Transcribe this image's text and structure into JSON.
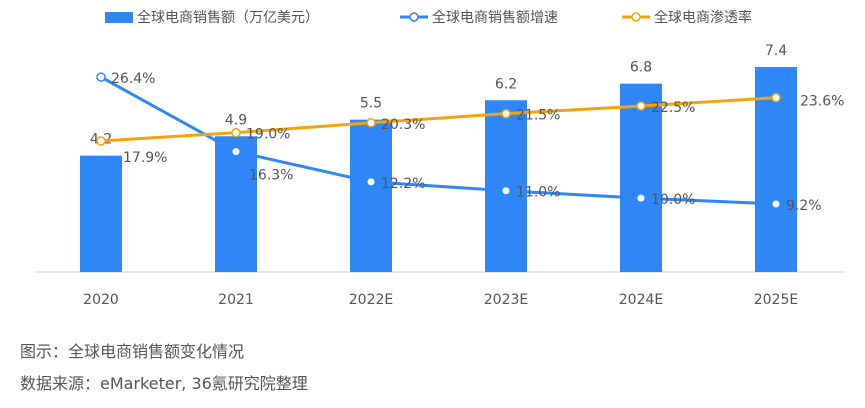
{
  "chart_data": {
    "type": "bar+line",
    "categories": [
      "2020",
      "2021",
      "2022E",
      "2023E",
      "2024E",
      "2025E"
    ],
    "series": [
      {
        "name": "全球电商销售额（万亿美元）",
        "type": "bar",
        "axis": "left",
        "color": "#2f86f6",
        "values": [
          4.2,
          4.9,
          5.5,
          6.2,
          6.8,
          7.4
        ],
        "labels": [
          "4.2",
          "4.9",
          "5.5",
          "6.2",
          "6.8",
          "7.4"
        ]
      },
      {
        "name": "全球电商销售额增速",
        "type": "line",
        "axis": "right",
        "color": "#2f86f6",
        "values": [
          26.4,
          16.3,
          12.2,
          11.0,
          10.0,
          9.2
        ],
        "labels": [
          "26.4%",
          "16.3%",
          "12.2%",
          "11.0%",
          "10.0%",
          "9.2%"
        ]
      },
      {
        "name": "全球电商渗透率",
        "type": "line",
        "axis": "right",
        "color": "#f5a30a",
        "values": [
          17.9,
          19.0,
          20.3,
          21.5,
          22.5,
          23.6
        ],
        "labels": [
          "17.9%",
          "19.0%",
          "20.3%",
          "21.5%",
          "22.5%",
          "23.6%"
        ]
      }
    ],
    "legend": "top",
    "grid": false
  },
  "caption": {
    "figure": "图示：全球电商销售额变化情况",
    "source": "数据来源：eMarketer, 36氪研究院整理"
  }
}
